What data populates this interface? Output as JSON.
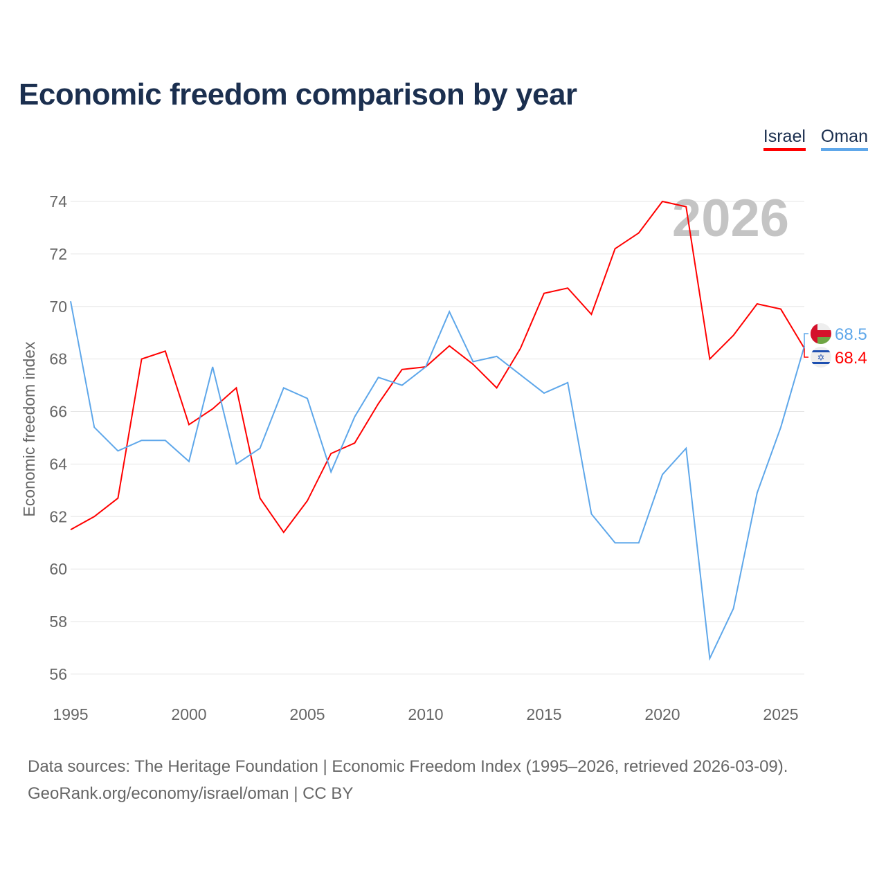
{
  "title": "Economic freedom comparison by year",
  "legend": [
    {
      "name": "Israel",
      "color": "#ff0000"
    },
    {
      "name": "Oman",
      "color": "#5ea7ea"
    }
  ],
  "source_line1": "Data sources: The Heritage Foundation | Economic Freedom Index (1995–2026, retrieved 2026-03-09).",
  "source_line2": "GeoRank.org/economy/israel/oman | CC BY",
  "chart_data": {
    "type": "line",
    "title": "Economic freedom comparison by year",
    "xlabel": "",
    "ylabel": "Economic freedom index",
    "year_watermark": "2026",
    "x": [
      1995,
      1996,
      1997,
      1998,
      1999,
      2000,
      2001,
      2002,
      2003,
      2004,
      2005,
      2006,
      2007,
      2008,
      2009,
      2010,
      2011,
      2012,
      2013,
      2014,
      2015,
      2016,
      2017,
      2018,
      2019,
      2020,
      2021,
      2022,
      2023,
      2024,
      2025,
      2026
    ],
    "xticks": [
      1995,
      2000,
      2005,
      2010,
      2015,
      2020,
      2025
    ],
    "yticks": [
      56,
      58,
      60,
      62,
      64,
      66,
      68,
      70,
      72,
      74
    ],
    "ylim": [
      55,
      75
    ],
    "xlim": [
      1995,
      2026
    ],
    "grid": true,
    "legend_position": "top-right",
    "series": [
      {
        "name": "Israel",
        "color": "#ff0000",
        "end_label": "68.4",
        "flag": "israel-flag",
        "values": [
          61.5,
          62.0,
          62.7,
          68.0,
          68.3,
          65.5,
          66.1,
          66.9,
          62.7,
          61.4,
          62.6,
          64.4,
          64.8,
          66.3,
          67.6,
          67.7,
          68.5,
          67.8,
          66.9,
          68.4,
          70.5,
          70.7,
          69.7,
          72.2,
          72.8,
          74.0,
          73.8,
          68.0,
          68.9,
          70.1,
          69.9,
          68.4
        ]
      },
      {
        "name": "Oman",
        "color": "#5ea7ea",
        "end_label": "68.5",
        "flag": "oman-flag",
        "values": [
          70.2,
          65.4,
          64.5,
          64.9,
          64.9,
          64.1,
          67.7,
          64.0,
          64.6,
          66.9,
          66.5,
          63.7,
          65.8,
          67.3,
          67.0,
          67.7,
          69.8,
          67.9,
          68.1,
          67.4,
          66.7,
          67.1,
          62.1,
          61.0,
          61.0,
          63.6,
          64.6,
          56.6,
          58.5,
          62.9,
          65.4,
          68.5
        ]
      }
    ]
  }
}
